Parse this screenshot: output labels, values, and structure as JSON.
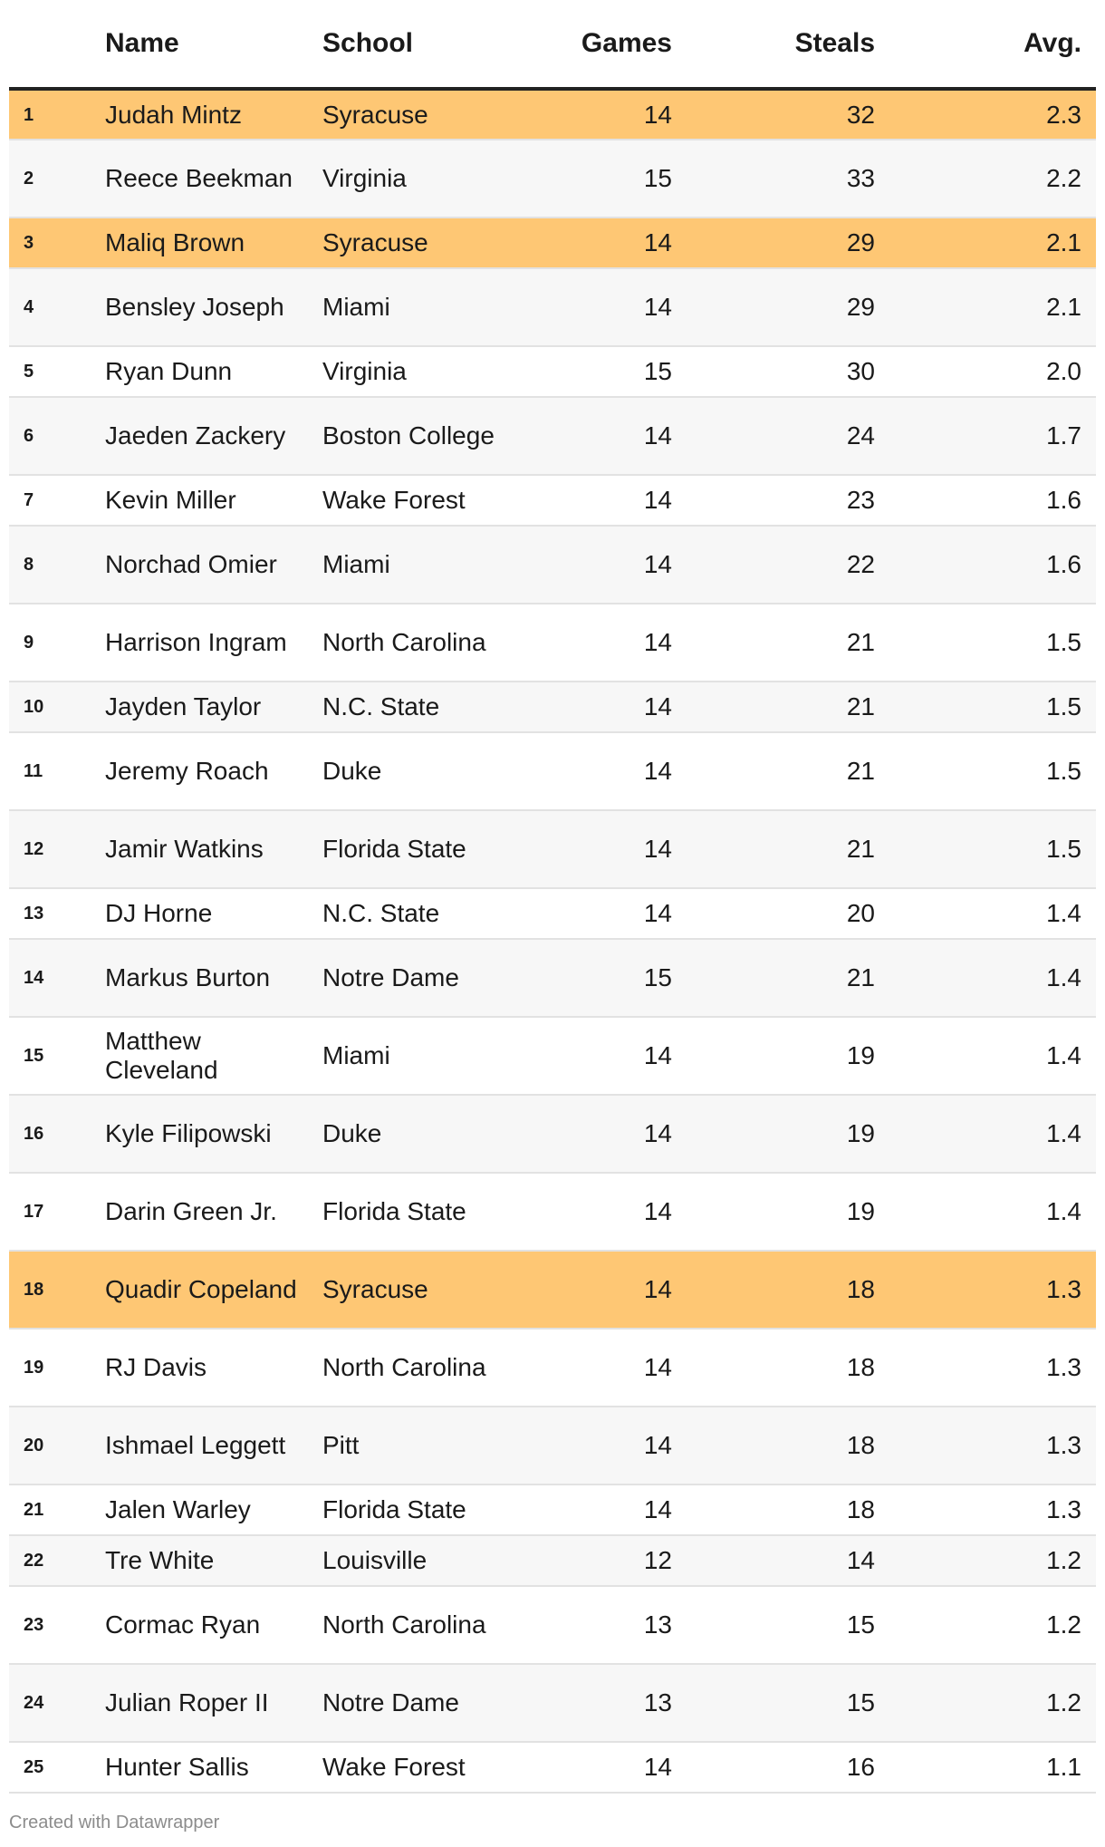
{
  "chart_data": {
    "type": "table",
    "columns": [
      "",
      "Name",
      "School",
      "Games",
      "Steals",
      "Avg."
    ],
    "highlight_color": "#fec774",
    "rows": [
      {
        "rank": "1",
        "name": "Judah Mintz",
        "school": "Syracuse",
        "games": 14,
        "steals": 32,
        "avg": "2.3",
        "highlight": true
      },
      {
        "rank": "2",
        "name": "Reece Beekman",
        "school": "Virginia",
        "games": 15,
        "steals": 33,
        "avg": "2.2",
        "highlight": false
      },
      {
        "rank": "3",
        "name": "Maliq Brown",
        "school": "Syracuse",
        "games": 14,
        "steals": 29,
        "avg": "2.1",
        "highlight": true
      },
      {
        "rank": "4",
        "name": "Bensley Joseph",
        "school": "Miami",
        "games": 14,
        "steals": 29,
        "avg": "2.1",
        "highlight": false
      },
      {
        "rank": "5",
        "name": "Ryan Dunn",
        "school": "Virginia",
        "games": 15,
        "steals": 30,
        "avg": "2.0",
        "highlight": false
      },
      {
        "rank": "6",
        "name": "Jaeden Zackery",
        "school": "Boston College",
        "games": 14,
        "steals": 24,
        "avg": "1.7",
        "highlight": false
      },
      {
        "rank": "7",
        "name": "Kevin Miller",
        "school": "Wake Forest",
        "games": 14,
        "steals": 23,
        "avg": "1.6",
        "highlight": false
      },
      {
        "rank": "8",
        "name": "Norchad Omier",
        "school": "Miami",
        "games": 14,
        "steals": 22,
        "avg": "1.6",
        "highlight": false
      },
      {
        "rank": "9",
        "name": "Harrison Ingram",
        "school": "North Carolina",
        "games": 14,
        "steals": 21,
        "avg": "1.5",
        "highlight": false
      },
      {
        "rank": "10",
        "name": "Jayden Taylor",
        "school": "N.C. State",
        "games": 14,
        "steals": 21,
        "avg": "1.5",
        "highlight": false
      },
      {
        "rank": "11",
        "name": "Jeremy Roach",
        "school": "Duke",
        "games": 14,
        "steals": 21,
        "avg": "1.5",
        "highlight": false
      },
      {
        "rank": "12",
        "name": "Jamir Watkins",
        "school": "Florida State",
        "games": 14,
        "steals": 21,
        "avg": "1.5",
        "highlight": false
      },
      {
        "rank": "13",
        "name": "DJ Horne",
        "school": "N.C. State",
        "games": 14,
        "steals": 20,
        "avg": "1.4",
        "highlight": false
      },
      {
        "rank": "14",
        "name": "Markus Burton",
        "school": "Notre Dame",
        "games": 15,
        "steals": 21,
        "avg": "1.4",
        "highlight": false
      },
      {
        "rank": "15",
        "name": "Matthew Cleveland",
        "school": "Miami",
        "games": 14,
        "steals": 19,
        "avg": "1.4",
        "highlight": false
      },
      {
        "rank": "16",
        "name": "Kyle Filipowski",
        "school": "Duke",
        "games": 14,
        "steals": 19,
        "avg": "1.4",
        "highlight": false
      },
      {
        "rank": "17",
        "name": "Darin Green Jr.",
        "school": "Florida State",
        "games": 14,
        "steals": 19,
        "avg": "1.4",
        "highlight": false
      },
      {
        "rank": "18",
        "name": "Quadir Copeland",
        "school": "Syracuse",
        "games": 14,
        "steals": 18,
        "avg": "1.3",
        "highlight": true
      },
      {
        "rank": "19",
        "name": "RJ Davis",
        "school": "North Carolina",
        "games": 14,
        "steals": 18,
        "avg": "1.3",
        "highlight": false
      },
      {
        "rank": "20",
        "name": "Ishmael Leggett",
        "school": "Pitt",
        "games": 14,
        "steals": 18,
        "avg": "1.3",
        "highlight": false
      },
      {
        "rank": "21",
        "name": "Jalen Warley",
        "school": "Florida State",
        "games": 14,
        "steals": 18,
        "avg": "1.3",
        "highlight": false
      },
      {
        "rank": "22",
        "name": "Tre White",
        "school": "Louisville",
        "games": 12,
        "steals": 14,
        "avg": "1.2",
        "highlight": false
      },
      {
        "rank": "23",
        "name": "Cormac Ryan",
        "school": "North Carolina",
        "games": 13,
        "steals": 15,
        "avg": "1.2",
        "highlight": false
      },
      {
        "rank": "24",
        "name": "Julian Roper II",
        "school": "Notre Dame",
        "games": 13,
        "steals": 15,
        "avg": "1.2",
        "highlight": false
      },
      {
        "rank": "25",
        "name": "Hunter Sallis",
        "school": "Wake Forest",
        "games": 14,
        "steals": 16,
        "avg": "1.1",
        "highlight": false
      }
    ]
  },
  "footer": {
    "credit": "Created with Datawrapper"
  }
}
